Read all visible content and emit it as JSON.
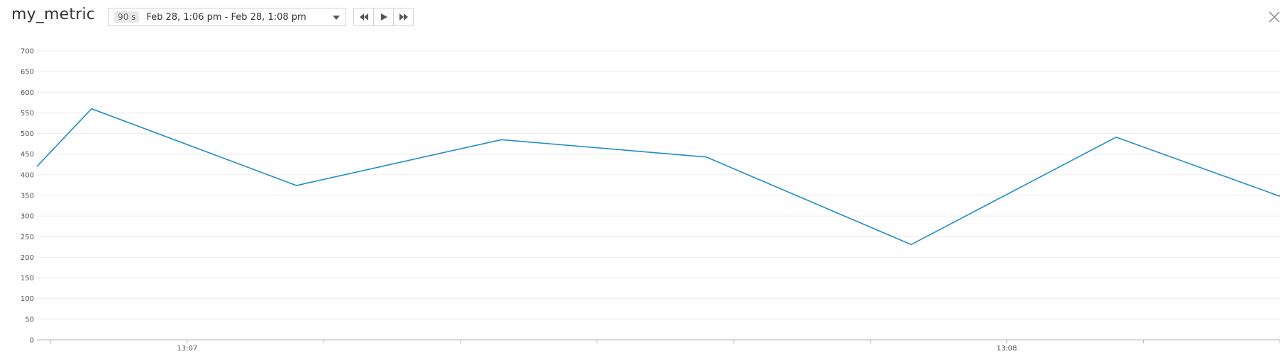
{
  "header": {
    "title": "my_metric",
    "span_badge": "90 s",
    "time_range": "Feb 28, 1:06 pm - Feb 28, 1:08 pm"
  },
  "controls": {
    "rewind_icon": "rewind-icon",
    "play_icon": "play-icon",
    "fast_forward_icon": "fast-forward-icon",
    "close_icon": "close-icon"
  },
  "colors": {
    "line": "#1f8dc7",
    "grid": "#ececec",
    "axis": "#b4b4b4"
  },
  "chart_data": {
    "type": "line",
    "title": "my_metric",
    "xlabel": "",
    "ylabel": "",
    "ylim": [
      0,
      700
    ],
    "yticks": [
      0,
      50,
      100,
      150,
      200,
      250,
      300,
      350,
      400,
      450,
      500,
      550,
      600,
      650,
      700
    ],
    "xlim": [
      "13:06:49",
      "13:08:20"
    ],
    "xtick_labels": [
      {
        "time": "13:07:00",
        "label": "13:07"
      },
      {
        "time": "13:08:00",
        "label": "13:08"
      }
    ],
    "grid": true,
    "legend": "none",
    "series": [
      {
        "x": [
          "13:06:49",
          "13:06:53",
          "13:07:08",
          "13:07:23",
          "13:07:38",
          "13:07:53",
          "13:08:08",
          "13:08:20"
        ],
        "values": [
          420,
          560,
          374,
          485,
          443,
          231,
          491,
          348
        ]
      }
    ]
  }
}
